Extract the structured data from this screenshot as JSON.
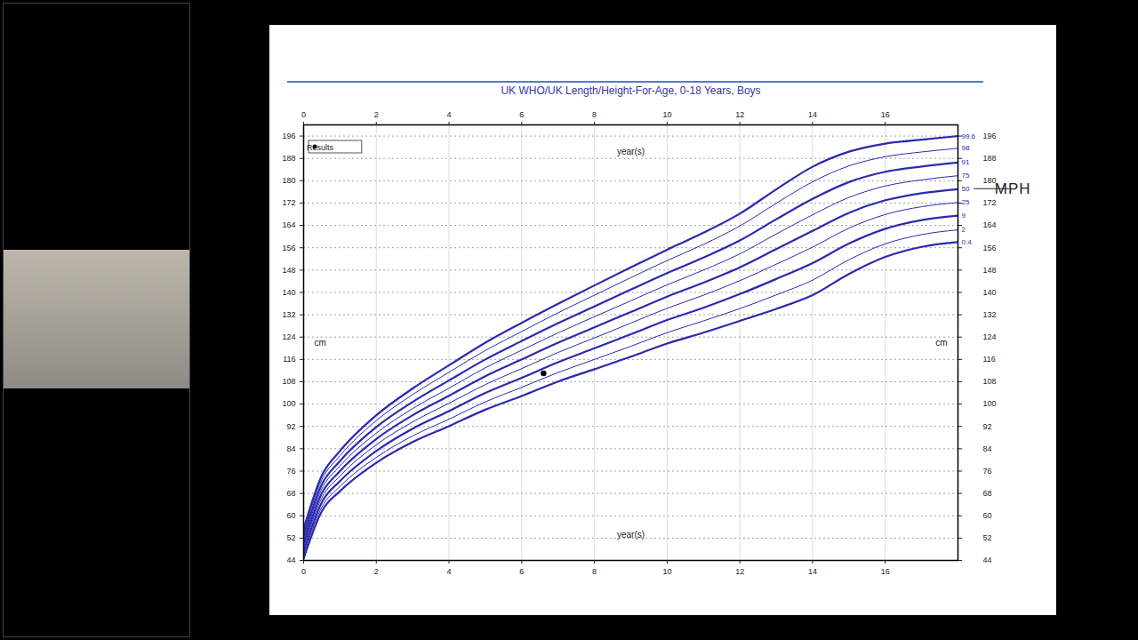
{
  "chart_data": {
    "type": "line",
    "title": "UK WHO/UK Length/Height-For-Age, 0-18 Years, Boys",
    "x_label": "year(s)",
    "y_label": "cm",
    "x": [
      0,
      0.5,
      1,
      2,
      3,
      4,
      5,
      6,
      7,
      8,
      9,
      10,
      11,
      12,
      13,
      14,
      15,
      16,
      17,
      18
    ],
    "series": [
      {
        "name": "99.6",
        "color": "#2a2ab0",
        "line_style": "thick",
        "values": [
          55.3,
          74.4,
          83.2,
          96.0,
          105.6,
          113.9,
          122.0,
          129.1,
          135.9,
          142.5,
          149.0,
          155.3,
          161.4,
          168.2,
          176.9,
          185.0,
          190.4,
          193.3,
          194.7,
          196.0
        ]
      },
      {
        "name": "98",
        "color": "#2a2ab0",
        "line_style": "thin",
        "values": [
          54.1,
          72.9,
          81.5,
          94.1,
          103.4,
          111.4,
          119.2,
          126.0,
          132.7,
          139.0,
          145.3,
          151.4,
          157.2,
          163.8,
          171.9,
          179.6,
          185.3,
          188.6,
          190.3,
          191.6
        ]
      },
      {
        "name": "91",
        "color": "#2a2ab0",
        "line_style": "thick",
        "values": [
          52.7,
          71.2,
          79.6,
          91.8,
          100.8,
          108.5,
          116.0,
          122.6,
          129.0,
          135.0,
          141.0,
          146.9,
          152.5,
          158.6,
          166.2,
          173.5,
          179.5,
          183.2,
          185.1,
          186.5
        ]
      },
      {
        "name": "75",
        "color": "#2a2ab0",
        "line_style": "thin",
        "values": [
          51.3,
          69.6,
          77.8,
          89.6,
          98.4,
          105.7,
          113.0,
          119.3,
          125.5,
          131.3,
          137.0,
          142.7,
          148.0,
          153.8,
          160.9,
          167.8,
          174.0,
          178.1,
          180.3,
          181.8
        ]
      },
      {
        "name": "50",
        "color": "#2a2ab0",
        "line_style": "thick",
        "values": [
          50,
          68,
          76,
          87.5,
          96,
          103,
          110,
          116,
          122,
          127.5,
          133,
          138.5,
          143.5,
          149,
          155.5,
          162,
          168.5,
          173,
          175.5,
          177
        ]
      },
      {
        "name": "25",
        "color": "#2a2ab0",
        "line_style": "thin",
        "values": [
          48.7,
          66.4,
          74.2,
          85.4,
          93.6,
          100.3,
          107.0,
          112.7,
          118.5,
          123.7,
          129.0,
          134.3,
          139.0,
          144.2,
          150.1,
          156.2,
          163.0,
          167.9,
          170.7,
          172.2
        ]
      },
      {
        "name": "9",
        "color": "#2a2ab0",
        "line_style": "thick",
        "values": [
          47.3,
          64.8,
          72.4,
          83.2,
          91.2,
          97.5,
          104.0,
          109.4,
          115.0,
          120.0,
          125.0,
          130.1,
          134.5,
          139.4,
          144.8,
          150.5,
          157.5,
          162.8,
          165.9,
          167.5
        ]
      },
      {
        "name": "2",
        "color": "#2a2ab0",
        "line_style": "thin",
        "values": [
          45.9,
          63.1,
          70.5,
          80.9,
          88.6,
          94.6,
          100.8,
          106.0,
          111.3,
          116.0,
          120.7,
          125.6,
          129.8,
          134.2,
          139.1,
          144.4,
          151.7,
          157.4,
          160.7,
          162.4
        ]
      },
      {
        "name": "0.4",
        "color": "#2a2ab0",
        "line_style": "thick",
        "values": [
          44.7,
          61.6,
          68.8,
          79.0,
          86.4,
          92.1,
          98.0,
          102.9,
          108.1,
          112.5,
          117.0,
          121.7,
          125.6,
          129.8,
          134.1,
          139.0,
          146.6,
          152.7,
          156.3,
          158.0
        ]
      },
      {
        "name": "Results",
        "type": "scatter",
        "marker": "circle",
        "color": "#000000",
        "x": [
          6.6
        ],
        "values": [
          111
        ]
      }
    ],
    "xlim": [
      0,
      18
    ],
    "xticks": [
      0,
      2,
      4,
      6,
      8,
      10,
      12,
      14,
      16
    ],
    "ylim": [
      44,
      200
    ],
    "yticks": [
      44,
      52,
      60,
      68,
      76,
      84,
      92,
      100,
      108,
      116,
      124,
      132,
      140,
      148,
      156,
      164,
      172,
      180,
      188,
      196
    ],
    "grid": true,
    "legend": "top-left",
    "annotations": [
      {
        "text": "MPH",
        "x": 18,
        "y": 177
      }
    ]
  }
}
